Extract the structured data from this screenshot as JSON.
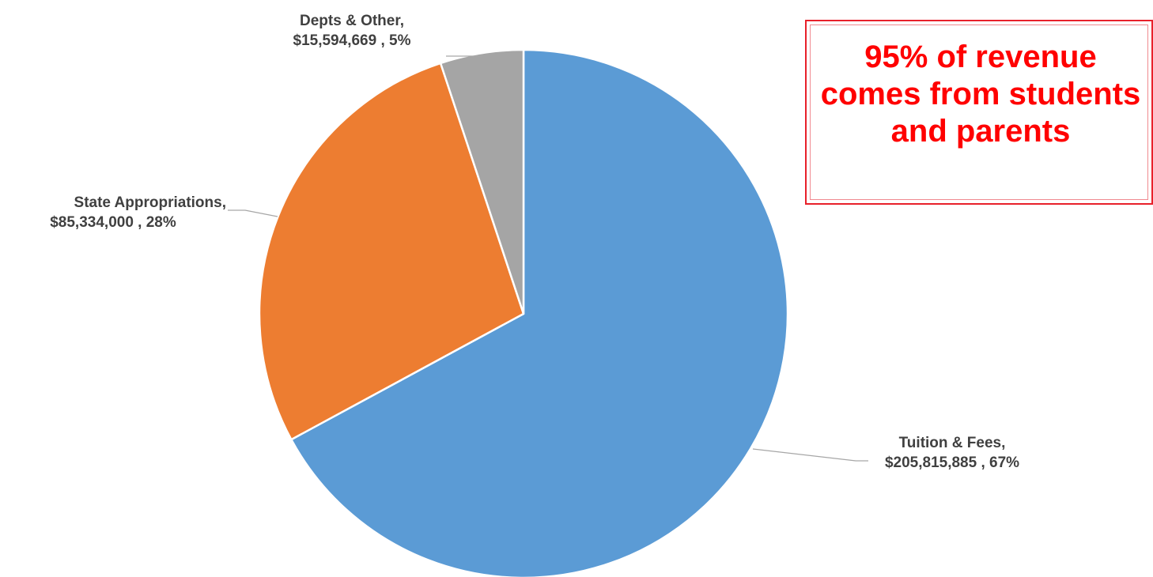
{
  "chart_data": {
    "type": "pie",
    "title": "",
    "slices": [
      {
        "label": "Tuition & Fees",
        "amount": 205815885,
        "amount_text": "$205,815,885",
        "percent": 67,
        "percent_text": "67%",
        "color": "#5b9bd5"
      },
      {
        "label": "State Appropriations",
        "amount": 85334000,
        "amount_text": "$85,334,000",
        "percent": 28,
        "percent_text": "28%",
        "color": "#ed7d31"
      },
      {
        "label": "Depts & Other",
        "amount": 15594669,
        "amount_text": "$15,594,669",
        "percent": 5,
        "percent_text": "5%",
        "color": "#a5a5a5"
      }
    ],
    "data_labels": [
      {
        "line1": "Depts & Other,",
        "line2": "$15,594,669 , 5%"
      },
      {
        "line1": "State Appropriations,",
        "line2": "$85,334,000 , 28%"
      },
      {
        "line1": "Tuition & Fees,",
        "line2": "$205,815,885 , 67%"
      }
    ],
    "start_angle": "12 o'clock",
    "direction": "clockwise",
    "legend": "none"
  },
  "callout": {
    "text": "95% of revenue comes from students and parents",
    "border_color": "#e8202a",
    "text_color": "#ff0000"
  }
}
